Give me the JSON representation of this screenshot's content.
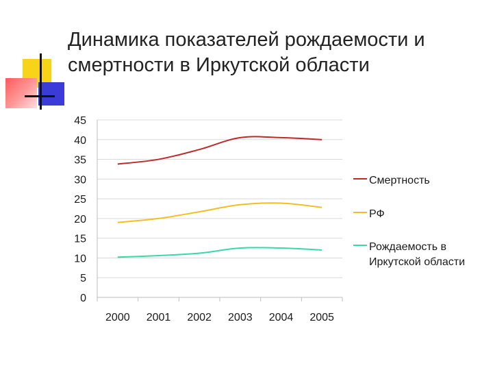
{
  "slide": {
    "title_line1": "Динамика показателей рождаемости и",
    "title_line2": "смертности в Иркутской области"
  },
  "chart_data": {
    "type": "line",
    "title": "",
    "xlabel": "",
    "ylabel": "",
    "x": [
      "2000",
      "2001",
      "2002",
      "2003",
      "2004",
      "2005"
    ],
    "ylim": [
      0,
      45
    ],
    "yticks": [
      "0",
      "5",
      "10",
      "15",
      "20",
      "25",
      "30",
      "35",
      "40",
      "45"
    ],
    "grid": "horizontal",
    "legend_position": "right",
    "series": [
      {
        "name": "Смертность",
        "legend_lines": [
          "Смертность"
        ],
        "color": "#c0282b",
        "values": [
          33.8,
          35.0,
          37.5,
          40.5,
          40.5,
          40.0
        ]
      },
      {
        "name": "РФ",
        "legend_lines": [
          "РФ"
        ],
        "color": "#f0c020",
        "values": [
          19.0,
          20.0,
          21.7,
          23.5,
          23.9,
          22.8
        ]
      },
      {
        "name": "Рождаемость в Иркутской области",
        "legend_lines": [
          "Рождаемость в",
          "Иркутской области"
        ],
        "color": "#38d9a9",
        "values": [
          10.2,
          10.6,
          11.2,
          12.5,
          12.5,
          12.0
        ]
      }
    ]
  }
}
